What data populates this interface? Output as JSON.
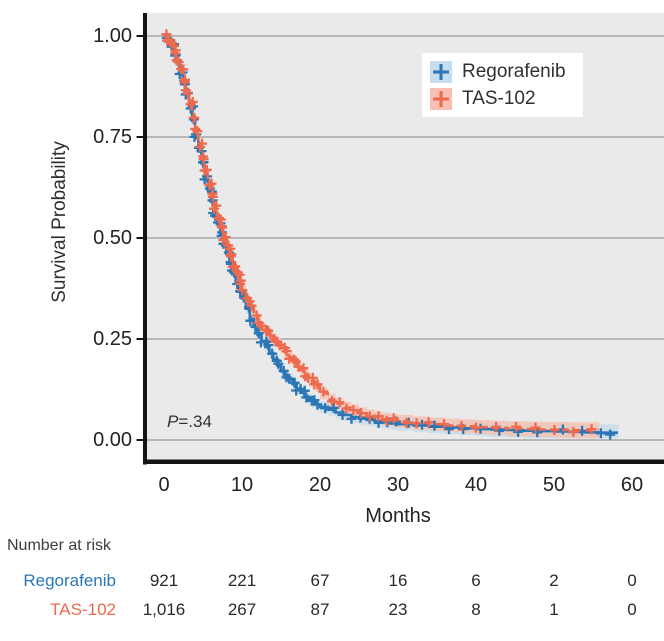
{
  "chart_data": {
    "type": "line",
    "subtype": "kaplan-meier-step-curve",
    "title": "",
    "xlabel": "Months",
    "ylabel": "Survival Probability",
    "xlim": [
      0,
      60
    ],
    "ylim": [
      0,
      1
    ],
    "xtick_labels": [
      "0",
      "10",
      "20",
      "30",
      "40",
      "50",
      "60"
    ],
    "xtick_values": [
      0,
      10,
      20,
      30,
      40,
      50,
      60
    ],
    "ytick_labels": [
      "1.00",
      "0.75",
      "0.50",
      "0.25",
      "0.00"
    ],
    "ytick_values": [
      1,
      0.75,
      0.5,
      0.25,
      0
    ],
    "grid": "horizontal",
    "legend_position": "upper right",
    "plot_bg": "#eaeaea",
    "grid_color": "#9a9a9a",
    "axis_color": "#141414",
    "pvalue_label": "P",
    "pvalue_value": "=.34",
    "series": [
      {
        "name": "Regorafenib",
        "color": "#2b76b4",
        "band_color": "#c7dcec",
        "dashed": false,
        "points": [
          [
            0,
            1
          ],
          [
            0.4,
            0.99
          ],
          [
            0.8,
            0.975
          ],
          [
            1.2,
            0.955
          ],
          [
            1.6,
            0.935
          ],
          [
            2,
            0.91
          ],
          [
            2.4,
            0.885
          ],
          [
            2.8,
            0.855
          ],
          [
            3.2,
            0.825
          ],
          [
            3.6,
            0.79
          ],
          [
            4,
            0.755
          ],
          [
            4.4,
            0.72
          ],
          [
            4.8,
            0.685
          ],
          [
            5.2,
            0.65
          ],
          [
            5.6,
            0.62
          ],
          [
            6,
            0.59
          ],
          [
            6.4,
            0.56
          ],
          [
            6.8,
            0.535
          ],
          [
            7.2,
            0.51
          ],
          [
            7.6,
            0.485
          ],
          [
            8,
            0.46
          ],
          [
            8.4,
            0.44
          ],
          [
            8.8,
            0.415
          ],
          [
            9.2,
            0.39
          ],
          [
            9.6,
            0.37
          ],
          [
            10,
            0.35
          ],
          [
            10.5,
            0.325
          ],
          [
            11,
            0.3
          ],
          [
            11.5,
            0.28
          ],
          [
            12,
            0.26
          ],
          [
            12.5,
            0.245
          ],
          [
            13,
            0.23
          ],
          [
            13.5,
            0.215
          ],
          [
            14,
            0.2
          ],
          [
            14.5,
            0.185
          ],
          [
            15,
            0.17
          ],
          [
            15.5,
            0.16
          ],
          [
            16,
            0.15
          ],
          [
            16.5,
            0.138
          ],
          [
            17,
            0.127
          ],
          [
            17.5,
            0.117
          ],
          [
            18,
            0.108
          ],
          [
            18.5,
            0.1
          ],
          [
            19,
            0.094
          ],
          [
            19.5,
            0.088
          ],
          [
            20,
            0.082
          ],
          [
            21,
            0.075
          ],
          [
            22,
            0.068
          ],
          [
            23,
            0.062
          ],
          [
            24,
            0.057
          ],
          [
            25,
            0.053
          ],
          [
            26,
            0.05
          ],
          [
            27,
            0.047
          ],
          [
            28,
            0.044
          ],
          [
            29,
            0.041
          ],
          [
            30,
            0.039
          ],
          [
            32,
            0.036
          ],
          [
            34,
            0.033
          ],
          [
            36,
            0.031
          ],
          [
            38,
            0.029
          ],
          [
            40,
            0.027
          ],
          [
            42,
            0.026
          ],
          [
            44,
            0.025
          ],
          [
            46,
            0.023
          ],
          [
            48,
            0.022
          ],
          [
            50,
            0.021
          ],
          [
            52,
            0.02
          ],
          [
            54,
            0.019
          ],
          [
            56,
            0.018
          ],
          [
            57.5,
            0.018
          ]
        ],
        "censor_segments": [
          [
            0.5,
            10,
            0.22
          ],
          [
            10.3,
            20,
            0.45
          ],
          [
            20.8,
            30,
            1.1
          ]
        ],
        "censor_extra": [
          31.5,
          33,
          34.7,
          36.5,
          38.5,
          40.5,
          43,
          45.5,
          48,
          51,
          53.5,
          56,
          57.2
        ]
      },
      {
        "name": "TAS-102",
        "color": "#ee6a4e",
        "band_color": "#f6c0b2",
        "dashed": true,
        "points": [
          [
            0,
            1
          ],
          [
            0.4,
            0.992
          ],
          [
            0.8,
            0.978
          ],
          [
            1.2,
            0.96
          ],
          [
            1.6,
            0.94
          ],
          [
            2,
            0.915
          ],
          [
            2.4,
            0.89
          ],
          [
            2.8,
            0.862
          ],
          [
            3.2,
            0.832
          ],
          [
            3.6,
            0.8
          ],
          [
            4,
            0.765
          ],
          [
            4.4,
            0.73
          ],
          [
            4.8,
            0.7
          ],
          [
            5.2,
            0.665
          ],
          [
            5.6,
            0.635
          ],
          [
            6,
            0.605
          ],
          [
            6.4,
            0.575
          ],
          [
            6.8,
            0.55
          ],
          [
            7.2,
            0.525
          ],
          [
            7.6,
            0.5
          ],
          [
            8,
            0.478
          ],
          [
            8.4,
            0.455
          ],
          [
            8.8,
            0.432
          ],
          [
            9.2,
            0.41
          ],
          [
            9.6,
            0.39
          ],
          [
            10,
            0.37
          ],
          [
            10.5,
            0.348
          ],
          [
            11,
            0.328
          ],
          [
            11.5,
            0.31
          ],
          [
            12,
            0.292
          ],
          [
            12.5,
            0.278
          ],
          [
            13,
            0.268
          ],
          [
            13.5,
            0.258
          ],
          [
            14,
            0.248
          ],
          [
            14.5,
            0.238
          ],
          [
            15,
            0.228
          ],
          [
            15.5,
            0.217
          ],
          [
            16,
            0.206
          ],
          [
            16.5,
            0.195
          ],
          [
            17,
            0.184
          ],
          [
            17.5,
            0.173
          ],
          [
            18,
            0.162
          ],
          [
            18.5,
            0.152
          ],
          [
            19,
            0.142
          ],
          [
            19.5,
            0.133
          ],
          [
            20,
            0.115
          ],
          [
            21,
            0.1
          ],
          [
            22,
            0.09
          ],
          [
            23,
            0.08
          ],
          [
            24,
            0.073
          ],
          [
            25,
            0.066
          ],
          [
            26,
            0.06
          ],
          [
            27,
            0.056
          ],
          [
            28,
            0.052
          ],
          [
            29,
            0.049
          ],
          [
            30,
            0.046
          ],
          [
            32,
            0.042
          ],
          [
            34,
            0.039
          ],
          [
            36,
            0.036
          ],
          [
            38,
            0.034
          ],
          [
            40,
            0.032
          ],
          [
            42,
            0.03
          ],
          [
            44,
            0.028
          ],
          [
            46,
            0.027
          ],
          [
            48,
            0.026
          ],
          [
            50,
            0.025
          ],
          [
            52,
            0.024
          ],
          [
            55,
            0.024
          ]
        ],
        "censor_segments": [
          [
            0.35,
            10,
            0.2
          ],
          [
            10.15,
            20,
            0.4
          ],
          [
            20.4,
            30,
            1.0
          ]
        ],
        "censor_extra": [
          31,
          32.5,
          34,
          36,
          38,
          40,
          42.5,
          45,
          47.5,
          50,
          52.5,
          54.8
        ]
      }
    ],
    "risk_table": {
      "title": "Number at risk",
      "timepoints": [
        0,
        10,
        20,
        30,
        40,
        50,
        60
      ],
      "rows": [
        {
          "label": "Regorafenib",
          "color": "#2b76b4",
          "values": [
            "921",
            "221",
            "67",
            "16",
            "6",
            "2",
            "0"
          ]
        },
        {
          "label": "TAS-102",
          "color": "#ee6a4e",
          "values": [
            "1,016",
            "267",
            "87",
            "23",
            "8",
            "1",
            "0"
          ]
        }
      ]
    }
  }
}
